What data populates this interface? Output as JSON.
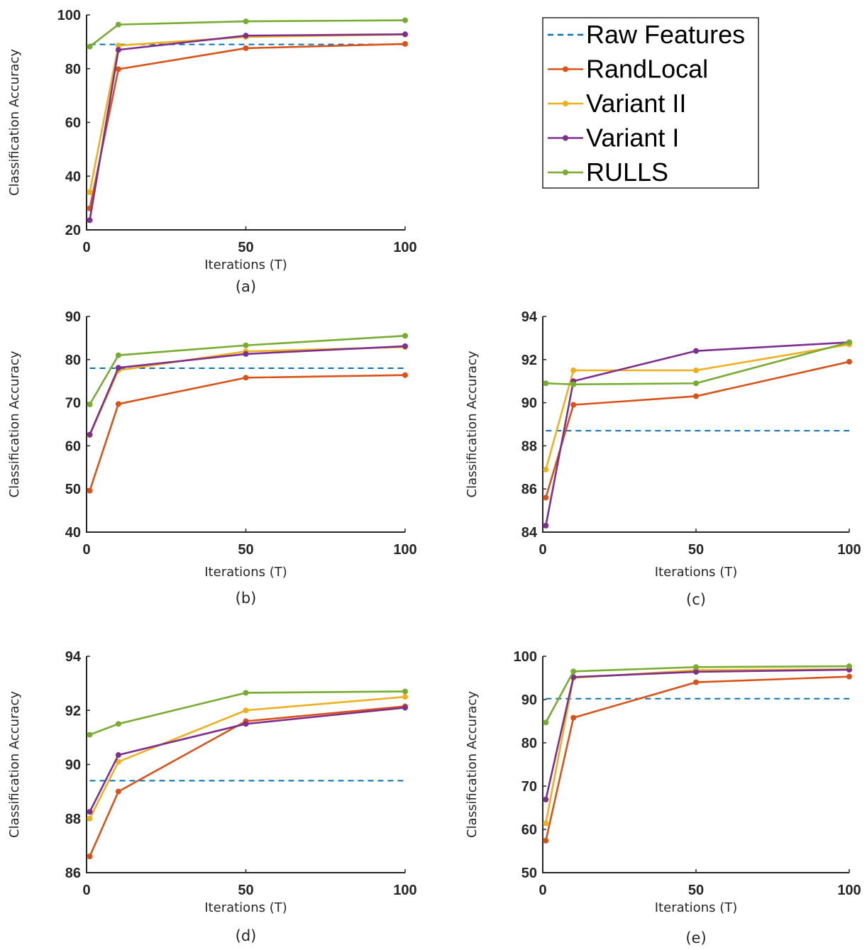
{
  "legend": [
    {
      "name": "Raw Features",
      "color": "#0072BD",
      "dashed": true
    },
    {
      "name": "RandLocal",
      "color": "#D95319",
      "dashed": false
    },
    {
      "name": "Variant II",
      "color": "#EDB120",
      "dashed": false
    },
    {
      "name": "Variant I",
      "color": "#7E2F8E",
      "dashed": false
    },
    {
      "name": "RULLS",
      "color": "#77AC30",
      "dashed": false
    }
  ],
  "chart_data": [
    {
      "type": "line",
      "caption": "(a)",
      "xlabel": "Iterations (T)",
      "ylabel": "Classification Accuracy",
      "xlim": [
        0,
        100
      ],
      "ylim": [
        20,
        100
      ],
      "xticks": [
        0,
        50,
        100
      ],
      "yticks": [
        20,
        40,
        60,
        80,
        100
      ],
      "x": [
        1,
        10,
        50,
        100
      ],
      "baseline": {
        "name": "Raw Features",
        "value": 89.0,
        "x_range": [
          1,
          100
        ]
      },
      "series": [
        {
          "name": "RandLocal",
          "values": [
            28.0,
            79.8,
            87.6,
            89.2
          ]
        },
        {
          "name": "Variant II",
          "values": [
            34.0,
            88.6,
            91.8,
            92.7
          ]
        },
        {
          "name": "Variant I",
          "values": [
            23.6,
            87.0,
            92.3,
            92.8
          ]
        },
        {
          "name": "RULLS",
          "values": [
            88.2,
            96.4,
            97.6,
            98.0
          ]
        }
      ]
    },
    {
      "type": "line",
      "caption": "(b)",
      "xlabel": "Iterations (T)",
      "ylabel": "Classification Accuracy",
      "xlim": [
        0,
        100
      ],
      "ylim": [
        40,
        90
      ],
      "xticks": [
        0,
        50,
        100
      ],
      "yticks": [
        40,
        50,
        60,
        70,
        80,
        90
      ],
      "x": [
        1,
        10,
        50,
        100
      ],
      "baseline": {
        "name": "Raw Features",
        "value": 78.0,
        "x_range": [
          1,
          100
        ]
      },
      "series": [
        {
          "name": "RandLocal",
          "values": [
            49.6,
            69.7,
            75.8,
            76.4
          ]
        },
        {
          "name": "Variant II",
          "values": [
            62.5,
            77.5,
            81.9,
            82.9
          ]
        },
        {
          "name": "Variant I",
          "values": [
            62.6,
            78.1,
            81.3,
            83.1
          ]
        },
        {
          "name": "RULLS",
          "values": [
            69.6,
            81.0,
            83.3,
            85.5
          ]
        }
      ]
    },
    {
      "type": "line",
      "caption": "(c)",
      "xlabel": "Iterations (T)",
      "ylabel": "Classification Accuracy",
      "xlim": [
        0,
        100
      ],
      "ylim": [
        84,
        94
      ],
      "xticks": [
        0,
        50,
        100
      ],
      "yticks": [
        84,
        86,
        88,
        90,
        92,
        94
      ],
      "x": [
        1,
        10,
        50,
        100
      ],
      "baseline": {
        "name": "Raw Features",
        "value": 88.7,
        "x_range": [
          1,
          100
        ]
      },
      "series": [
        {
          "name": "RandLocal",
          "values": [
            85.6,
            89.9,
            90.3,
            91.9
          ]
        },
        {
          "name": "Variant II",
          "values": [
            86.9,
            91.5,
            91.5,
            92.7
          ]
        },
        {
          "name": "Variant I",
          "values": [
            84.3,
            91.0,
            92.4,
            92.8
          ]
        },
        {
          "name": "RULLS",
          "values": [
            90.9,
            90.85,
            90.9,
            92.8
          ]
        }
      ]
    },
    {
      "type": "line",
      "caption": "(d)",
      "xlabel": "Iterations (T)",
      "ylabel": "Classification Accuracy",
      "xlim": [
        0,
        100
      ],
      "ylim": [
        86,
        94
      ],
      "xticks": [
        0,
        50,
        100
      ],
      "yticks": [
        86,
        88,
        90,
        92,
        94
      ],
      "x": [
        1,
        10,
        50,
        100
      ],
      "baseline": {
        "name": "Raw Features",
        "value": 89.4,
        "x_range": [
          1,
          100
        ]
      },
      "series": [
        {
          "name": "RandLocal",
          "values": [
            86.6,
            89.0,
            91.6,
            92.15
          ]
        },
        {
          "name": "Variant II",
          "values": [
            88.0,
            90.1,
            92.0,
            92.5
          ]
        },
        {
          "name": "Variant I",
          "values": [
            88.25,
            90.35,
            91.5,
            92.1
          ]
        },
        {
          "name": "RULLS",
          "values": [
            91.1,
            91.5,
            92.65,
            92.7
          ]
        }
      ]
    },
    {
      "type": "line",
      "caption": "(e)",
      "xlabel": "Iterations (T)",
      "ylabel": "Classification Accuracy",
      "xlim": [
        0,
        100
      ],
      "ylim": [
        50,
        100
      ],
      "xticks": [
        0,
        50,
        100
      ],
      "yticks": [
        50,
        60,
        70,
        80,
        90,
        100
      ],
      "x": [
        1,
        10,
        50,
        100
      ],
      "baseline": {
        "name": "Raw Features",
        "value": 90.2,
        "x_range": [
          1,
          100
        ]
      },
      "series": [
        {
          "name": "RandLocal",
          "values": [
            57.4,
            85.8,
            94.0,
            95.3
          ]
        },
        {
          "name": "Variant II",
          "values": [
            61.4,
            95.0,
            96.8,
            97.0
          ]
        },
        {
          "name": "Variant I",
          "values": [
            66.9,
            95.2,
            96.4,
            96.9
          ]
        },
        {
          "name": "RULLS",
          "values": [
            84.7,
            96.5,
            97.5,
            97.7
          ]
        }
      ]
    }
  ]
}
